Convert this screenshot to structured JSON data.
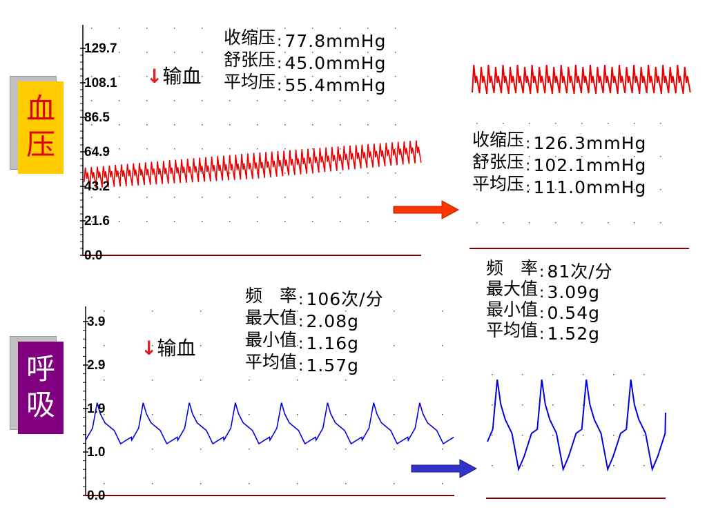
{
  "colors": {
    "bp": "#e80000",
    "resp": "#0000e0",
    "baseline": "#800000",
    "bp_label_bg": "#ffcc00",
    "resp_label_bg": "#800080",
    "bp_label_text": "#e00000",
    "resp_label_text": "#ffffff",
    "bp_arrow": "#ff3300",
    "resp_arrow": "#3333cc"
  },
  "panels": {
    "bp": {
      "label": "血压",
      "infusion_note": "输血",
      "ticks": [
        "129.7",
        "108.1",
        "86.5",
        "64.9",
        "43.2",
        "21.6",
        "0.0"
      ],
      "before": [
        {
          "label": "收缩压",
          "value": "77.8mmHg"
        },
        {
          "label": "舒张压",
          "value": "45.0mmHg"
        },
        {
          "label": "平均压",
          "value": "55.4mmHg"
        }
      ],
      "after": [
        {
          "label": "收缩压",
          "value": "126.3mmHg"
        },
        {
          "label": "舒张压",
          "value": "102.1mmHg"
        },
        {
          "label": "平均压",
          "value": "111.0mmHg"
        }
      ]
    },
    "resp": {
      "label": "呼吸",
      "infusion_note": "输血",
      "ticks": [
        "3.9",
        "2.9",
        "1.9",
        "1.0",
        "0.0"
      ],
      "before": [
        {
          "label": "频　率",
          "value": "106次/分"
        },
        {
          "label": "最大值",
          "value": "2.08g"
        },
        {
          "label": "最小值",
          "value": "1.16g"
        },
        {
          "label": "平均值",
          "value": "1.57g"
        }
      ],
      "after": [
        {
          "label": "频　率",
          "value": "81次/分"
        },
        {
          "label": "最大值",
          "value": "3.09g"
        },
        {
          "label": "最小值",
          "value": "0.54g"
        },
        {
          "label": "平均值",
          "value": "1.52g"
        }
      ]
    }
  },
  "chart_data": [
    {
      "type": "line",
      "series": [
        {
          "values": [
            [
              0,
              55,
              42
            ],
            [
              36,
              64,
              48
            ],
            [
              72,
              72,
              58
            ]
          ]
        }
      ],
      "ylim": [
        0,
        129.7
      ],
      "grid": true
    },
    {
      "type": "line",
      "series": [
        {
          "values": [
            [
              0,
              2.08,
              1.16
            ],
            [
              5.5,
              2.08,
              1.16
            ]
          ]
        }
      ],
      "ylim": [
        0,
        3.9
      ],
      "grid": true
    }
  ]
}
